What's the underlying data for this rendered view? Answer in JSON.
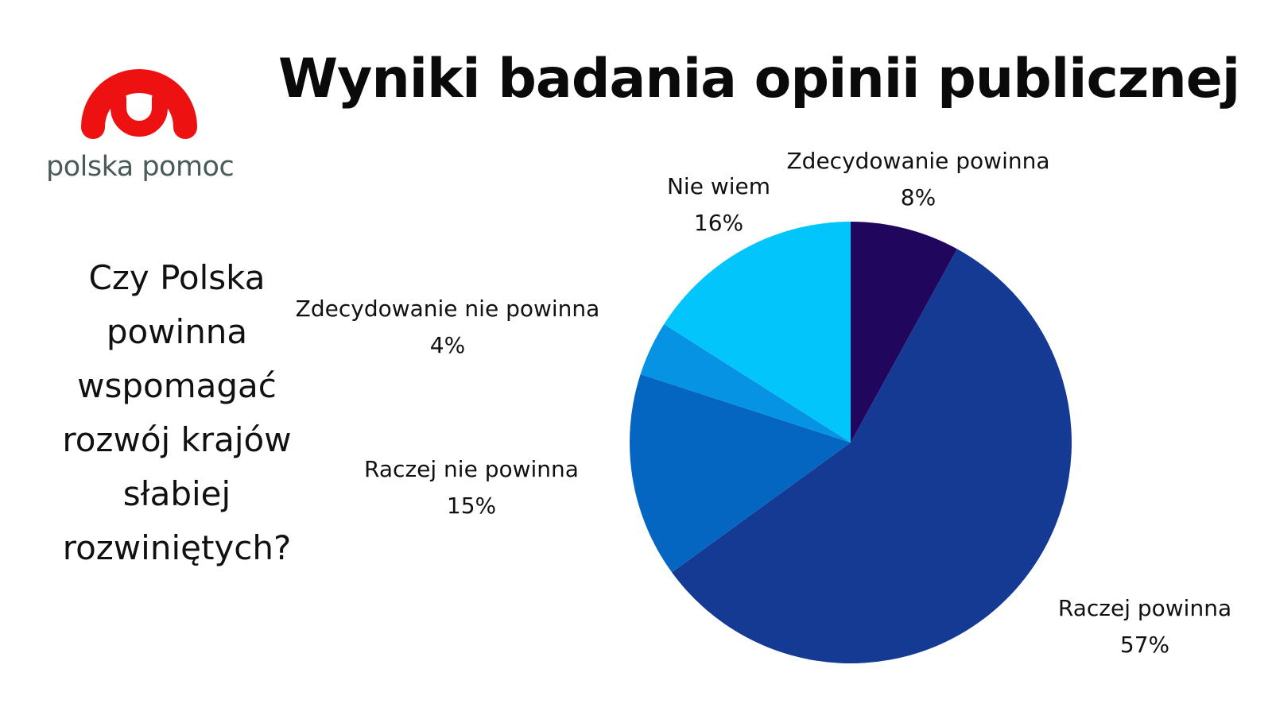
{
  "logo": {
    "text": "polska pomoc",
    "color": "#ee1111"
  },
  "header": {
    "title": "Wyniki badania opinii publicznej"
  },
  "question": {
    "text": "Czy Polska powinna wspomagać rozwój krajów słabiej rozwiniętych?"
  },
  "chart_data": {
    "type": "pie",
    "start_angle_deg": 0,
    "direction": "clockwise",
    "slices": [
      {
        "label": "Zdecydowanie powinna",
        "value": 8,
        "display": "8%",
        "color": "#21065e"
      },
      {
        "label": "Raczej powinna",
        "value": 57,
        "display": "57%",
        "color": "#143a93"
      },
      {
        "label": "Raczej nie powinna",
        "value": 15,
        "display": "15%",
        "color": "#0566c2"
      },
      {
        "label": "Zdecydowanie nie powinna",
        "value": 4,
        "display": "4%",
        "color": "#0693e3"
      },
      {
        "label": "Nie wiem",
        "value": 16,
        "display": "16%",
        "color": "#02c5fc"
      }
    ]
  }
}
